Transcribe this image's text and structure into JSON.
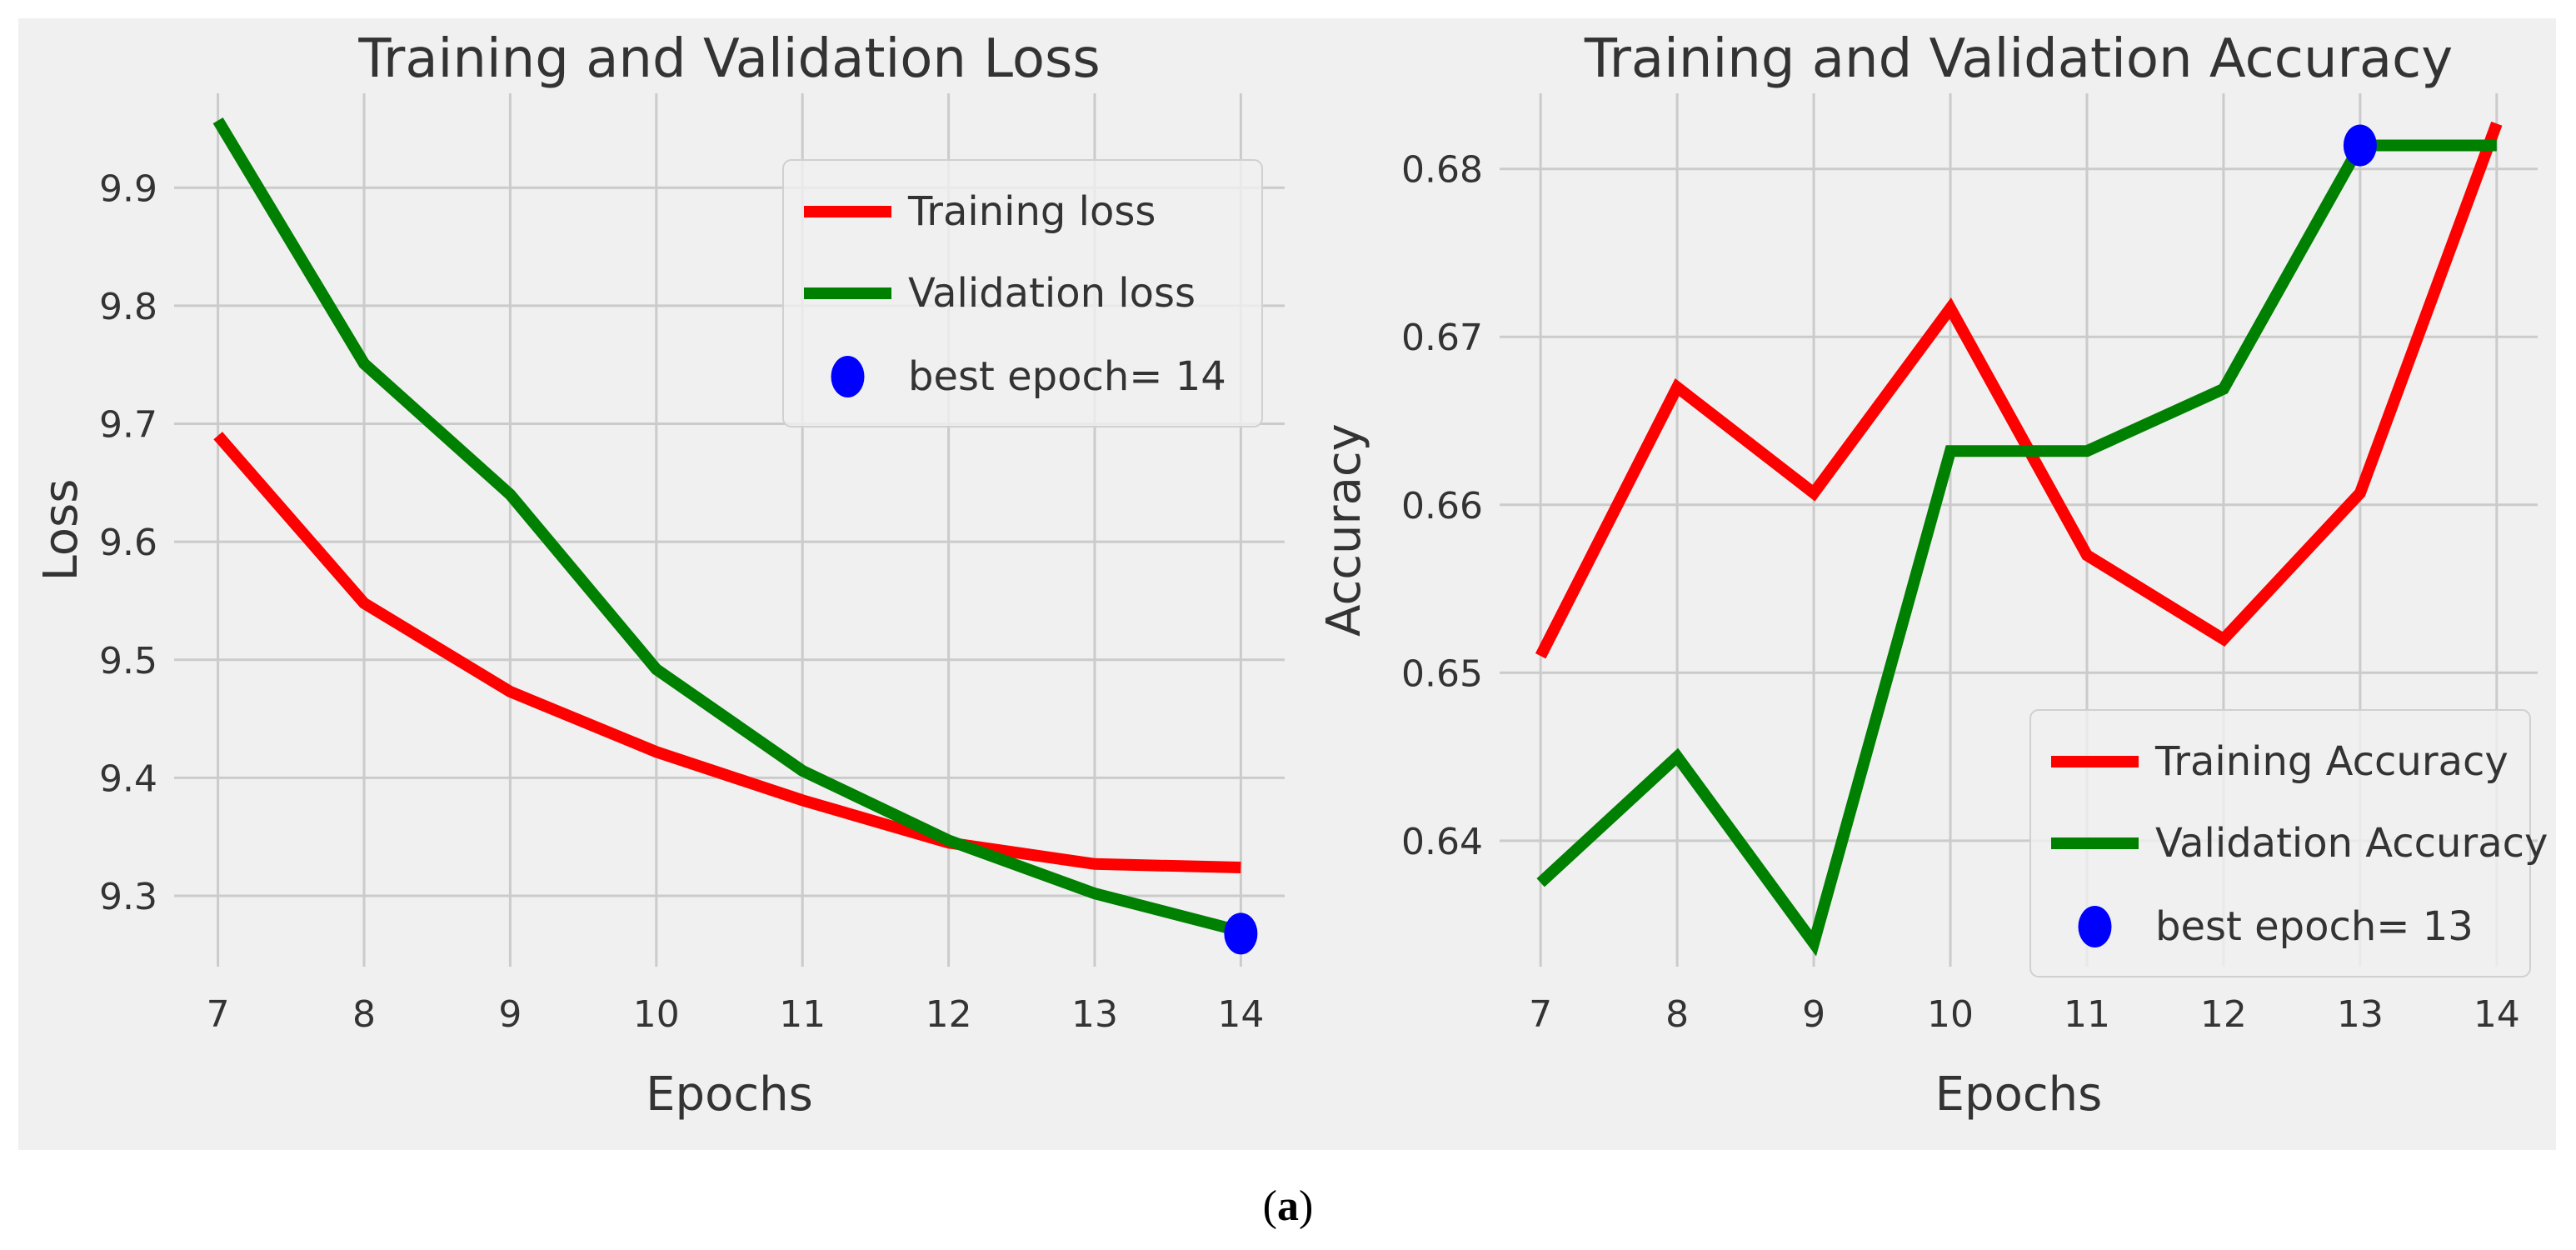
{
  "figure": {
    "caption_open": "(",
    "caption_letter": "a",
    "caption_close": ")"
  },
  "colors": {
    "background": "#f0f0f0",
    "grid": "#cbcbcb",
    "training": "#ff0000",
    "validation": "#008000",
    "best": "#0000ff",
    "text": "#333333"
  },
  "chart_data": [
    {
      "type": "line",
      "title": "Training and Validation Loss",
      "xlabel": "Epochs",
      "ylabel": "Loss",
      "x": [
        7,
        8,
        9,
        10,
        11,
        12,
        13,
        14
      ],
      "xticks": [
        "7",
        "8",
        "9",
        "10",
        "11",
        "12",
        "13",
        "14"
      ],
      "xlim": [
        6.7,
        14.3
      ],
      "ylim": [
        9.24,
        9.98
      ],
      "yticks": [
        9.3,
        9.4,
        9.5,
        9.6,
        9.7,
        9.8,
        9.9
      ],
      "ytick_labels": [
        "9.3",
        "9.4",
        "9.5",
        "9.6",
        "9.7",
        "9.8",
        "9.9"
      ],
      "grid": true,
      "legend_position": "top-right",
      "series": [
        {
          "name": "Training loss",
          "color": "#ff0000",
          "values": [
            9.69,
            9.548,
            9.473,
            9.422,
            9.381,
            9.345,
            9.327,
            9.324
          ]
        },
        {
          "name": "Validation loss",
          "color": "#008000",
          "values": [
            9.957,
            9.751,
            9.64,
            9.492,
            9.406,
            9.347,
            9.302,
            9.27
          ]
        }
      ],
      "best_point": {
        "label": "best epoch= 14",
        "x": 14,
        "y": 9.268
      }
    },
    {
      "type": "line",
      "title": "Training and Validation Accuracy",
      "xlabel": "Epochs",
      "ylabel": "Accuracy",
      "x": [
        7,
        8,
        9,
        10,
        11,
        12,
        13,
        14
      ],
      "xticks": [
        "7",
        "8",
        "9",
        "10",
        "11",
        "12",
        "13",
        "14"
      ],
      "xlim": [
        6.7,
        14.3
      ],
      "ylim": [
        0.6325,
        0.6845
      ],
      "yticks": [
        0.64,
        0.65,
        0.66,
        0.67,
        0.68
      ],
      "ytick_labels": [
        "0.64",
        "0.65",
        "0.66",
        "0.67",
        "0.68"
      ],
      "grid": true,
      "legend_position": "lower-right",
      "series": [
        {
          "name": "Training Accuracy",
          "color": "#ff0000",
          "values": [
            0.651,
            0.667,
            0.6607,
            0.6717,
            0.657,
            0.652,
            0.6607,
            0.6827
          ]
        },
        {
          "name": "Validation Accuracy",
          "color": "#008000",
          "values": [
            0.6375,
            0.645,
            0.6339,
            0.6632,
            0.6632,
            0.6669,
            0.6814,
            0.6814
          ]
        }
      ],
      "best_point": {
        "label": "best epoch= 13",
        "x": 13,
        "y": 0.6814
      }
    }
  ]
}
